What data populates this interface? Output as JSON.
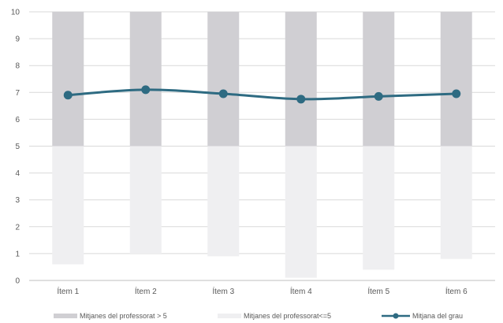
{
  "chart_data": {
    "type": "bar",
    "categories": [
      "Ítem 1",
      "Ítem 2",
      "Ítem 3",
      "Ítem 4",
      "Ítem 5",
      "Ítem 6"
    ],
    "ylim": [
      0,
      10
    ],
    "yticks": [
      "0",
      "1",
      "2",
      "3",
      "4",
      "5",
      "6",
      "7",
      "8",
      "9",
      "10"
    ],
    "grid": true,
    "legend_position": "bottom",
    "series": [
      {
        "name": "Mitjanes del professorat > 5",
        "kind": "bar",
        "color": "#d0cfd3",
        "values": [
          10,
          10,
          10,
          10,
          10,
          10
        ]
      },
      {
        "name": "Mitjanes del professorat<=5",
        "kind": "bar",
        "color": "#efeff1",
        "values": [
          0.6,
          1.0,
          0.9,
          0.1,
          0.4,
          0.8
        ]
      },
      {
        "name": "Mitjana del grau",
        "kind": "line",
        "color": "#2e6b82",
        "values": [
          6.9,
          7.1,
          6.95,
          6.75,
          6.85,
          6.95
        ]
      }
    ]
  }
}
